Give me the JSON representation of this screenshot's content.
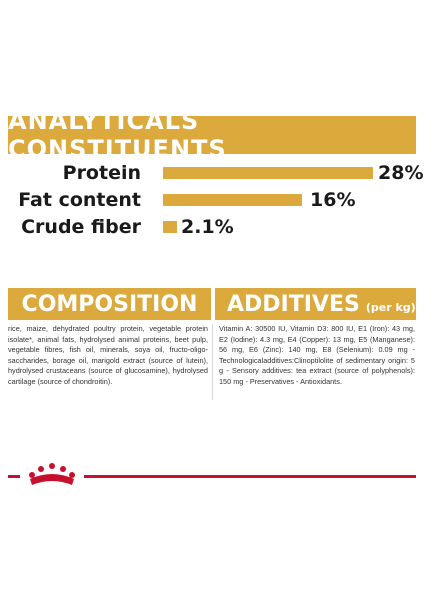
{
  "analytics": {
    "title": "ANALYTICALS CONSTITUENTS",
    "rows": [
      {
        "label": "Protein",
        "value": "28%",
        "fraction": 0.28
      },
      {
        "label": "Fat content",
        "value": "16%",
        "fraction": 0.16
      },
      {
        "label": "Crude fiber",
        "value": "2.1%",
        "fraction": 0.021
      }
    ]
  },
  "composition": {
    "title": "COMPOSITION",
    "text": "rice, maize, dehydrated poultry protein, vegetable protein isolate*, animal fats, hydrolysed animal proteins, beet pulp, vegetable fibres, fish oil, minerals, soya oil, fructo-oligo-saccharides, borage oil, marigold extract (source of lutein), hydrolysed crustaceans (source of glucosamine), hydrolysed cartilage (source of chondroitin)."
  },
  "additives": {
    "title": "ADDITIVES",
    "subtitle": "(per kg)",
    "text": "Vitamin A: 30500 IU, Vitamin D3: 800 IU, E1 (Iron): 43 mg, E2 (Iodine): 4.3 mg, E4 (Copper): 13 mg, E5 (Manganese): 56 mg, E6 (Zinc): 140 mg, E8 (Selenium): 0.09 mg - Technologicaladditives:Clinoptilolite of sedimentary origin: 5 g - Sensory additives: tea extract (source of polyphenols): 150 mg - Preservatives - Antioxidants."
  },
  "colors": {
    "accent": "#dba93c",
    "brand_red": "#c8102e"
  },
  "logo": {
    "icon": "royal-canin-crown-icon"
  }
}
